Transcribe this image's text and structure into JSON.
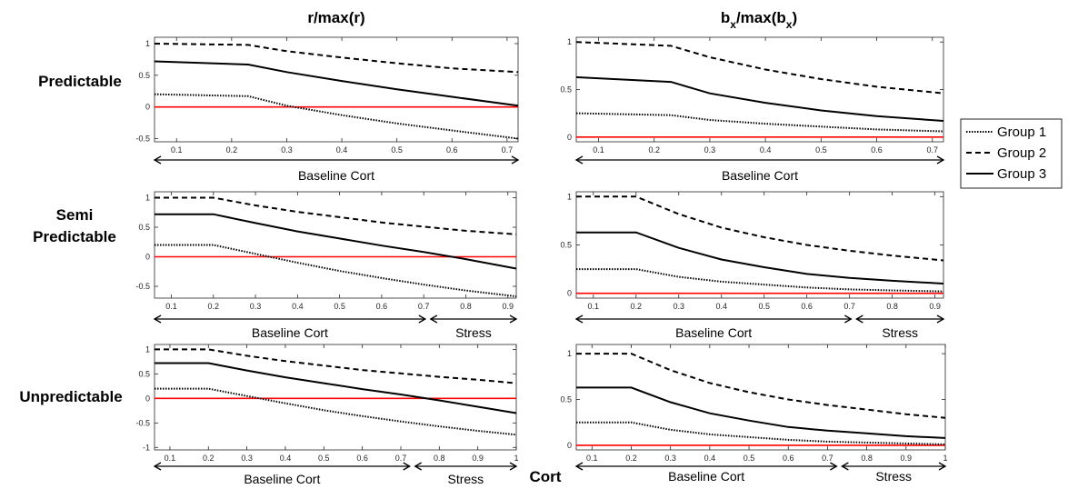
{
  "column_titles": [
    "r/max(r)",
    "bₓ/max(bₓ)"
  ],
  "column_title_parts": [
    {
      "text": "r/max(r)"
    },
    {
      "base1": "b",
      "sub1": "x",
      "mid": "/max(b",
      "sub2": "x",
      "end": ")"
    }
  ],
  "row_labels": [
    "Predictable",
    "Semi",
    "Predictable",
    "Unpredictable"
  ],
  "xlabel": "Cort",
  "segment_labels": {
    "baseline": "Baseline Cort",
    "stress": "Stress"
  },
  "legend": [
    {
      "name": "Group 1",
      "style": "dotted"
    },
    {
      "name": "Group 2",
      "style": "dashed"
    },
    {
      "name": "Group 3",
      "style": "solid"
    }
  ],
  "colors": {
    "series": "#000000",
    "zero_line": "#ff0000",
    "axes": "#262626"
  },
  "chart_data": [
    {
      "type": "line",
      "row": "Predictable",
      "column": "r/max(r)",
      "xlim": [
        0.06,
        0.72
      ],
      "ylim": [
        -0.55,
        1.1
      ],
      "xticks": [
        0.1,
        0.2,
        0.3,
        0.4,
        0.5,
        0.6,
        0.7
      ],
      "xtick_labels": [
        "0.1",
        "0.2",
        "0.3",
        "0.4",
        "0.5",
        "0.6",
        "0.7"
      ],
      "yticks": [
        -0.5,
        0,
        0.5,
        1
      ],
      "ytick_labels": [
        "-0.5",
        "0",
        "0.5",
        "1"
      ],
      "zero_line": true,
      "segments": [
        {
          "label": "Baseline Cort",
          "range": [
            0.06,
            0.72
          ]
        }
      ],
      "series": [
        {
          "name": "Group 1",
          "style": "dotted",
          "x": [
            0.06,
            0.23,
            0.3,
            0.4,
            0.5,
            0.6,
            0.72
          ],
          "y": [
            0.2,
            0.17,
            0.02,
            -0.13,
            -0.26,
            -0.37,
            -0.5
          ]
        },
        {
          "name": "Group 2",
          "style": "dashed",
          "x": [
            0.06,
            0.23,
            0.3,
            0.4,
            0.5,
            0.6,
            0.72
          ],
          "y": [
            1.0,
            0.98,
            0.88,
            0.78,
            0.69,
            0.61,
            0.55
          ]
        },
        {
          "name": "Group 3",
          "style": "solid",
          "x": [
            0.06,
            0.23,
            0.3,
            0.4,
            0.5,
            0.6,
            0.72
          ],
          "y": [
            0.72,
            0.67,
            0.55,
            0.41,
            0.28,
            0.16,
            0.02
          ]
        }
      ]
    },
    {
      "type": "line",
      "row": "Predictable",
      "column": "bx/max(bx)",
      "xlim": [
        0.06,
        0.72
      ],
      "ylim": [
        -0.05,
        1.05
      ],
      "xticks": [
        0.1,
        0.2,
        0.3,
        0.4,
        0.5,
        0.6,
        0.7
      ],
      "xtick_labels": [
        "0.1",
        "0.2",
        "0.3",
        "0.4",
        "0.5",
        "0.6",
        "0.7"
      ],
      "yticks": [
        0,
        0.5,
        1
      ],
      "ytick_labels": [
        "0",
        "0.5",
        "1"
      ],
      "zero_line": true,
      "segments": [
        {
          "label": "Baseline Cort",
          "range": [
            0.06,
            0.72
          ]
        }
      ],
      "series": [
        {
          "name": "Group 1",
          "style": "dotted",
          "x": [
            0.06,
            0.23,
            0.3,
            0.4,
            0.5,
            0.6,
            0.72
          ],
          "y": [
            0.25,
            0.23,
            0.18,
            0.14,
            0.11,
            0.08,
            0.06
          ]
        },
        {
          "name": "Group 2",
          "style": "dashed",
          "x": [
            0.06,
            0.23,
            0.3,
            0.4,
            0.5,
            0.6,
            0.72
          ],
          "y": [
            1.0,
            0.96,
            0.84,
            0.71,
            0.61,
            0.53,
            0.46
          ]
        },
        {
          "name": "Group 3",
          "style": "solid",
          "x": [
            0.06,
            0.23,
            0.3,
            0.4,
            0.5,
            0.6,
            0.72
          ],
          "y": [
            0.63,
            0.58,
            0.46,
            0.36,
            0.28,
            0.22,
            0.17
          ]
        }
      ]
    },
    {
      "type": "line",
      "row": "Semi Predictable",
      "column": "r/max(r)",
      "xlim": [
        0.06,
        0.92
      ],
      "ylim": [
        -0.7,
        1.1
      ],
      "xticks": [
        0.1,
        0.2,
        0.3,
        0.4,
        0.5,
        0.6,
        0.7,
        0.8,
        0.9
      ],
      "xtick_labels": [
        "0.1",
        "0.2",
        "0.3",
        "0.4",
        "0.5",
        "0.6",
        "0.7",
        "0.8",
        "0.9"
      ],
      "yticks": [
        -0.5,
        0,
        0.5,
        1
      ],
      "ytick_labels": [
        "-0.5",
        "0",
        "0.5",
        "1"
      ],
      "zero_line": true,
      "segments": [
        {
          "label": "Baseline Cort",
          "range": [
            0.06,
            0.71
          ]
        },
        {
          "label": "Stress",
          "range": [
            0.71,
            0.92
          ]
        }
      ],
      "series": [
        {
          "name": "Group 1",
          "style": "dotted",
          "x": [
            0.06,
            0.2,
            0.3,
            0.4,
            0.5,
            0.6,
            0.7,
            0.8,
            0.92
          ],
          "y": [
            0.2,
            0.2,
            0.05,
            -0.1,
            -0.24,
            -0.36,
            -0.47,
            -0.57,
            -0.67
          ]
        },
        {
          "name": "Group 2",
          "style": "dashed",
          "x": [
            0.06,
            0.2,
            0.3,
            0.4,
            0.5,
            0.6,
            0.7,
            0.8,
            0.92
          ],
          "y": [
            1.0,
            1.0,
            0.87,
            0.76,
            0.67,
            0.58,
            0.51,
            0.44,
            0.38
          ]
        },
        {
          "name": "Group 3",
          "style": "solid",
          "x": [
            0.06,
            0.2,
            0.3,
            0.4,
            0.5,
            0.6,
            0.7,
            0.8,
            0.92
          ],
          "y": [
            0.72,
            0.72,
            0.57,
            0.43,
            0.31,
            0.19,
            0.08,
            -0.04,
            -0.2
          ]
        }
      ]
    },
    {
      "type": "line",
      "row": "Semi Predictable",
      "column": "bx/max(bx)",
      "xlim": [
        0.06,
        0.92
      ],
      "ylim": [
        -0.05,
        1.05
      ],
      "xticks": [
        0.1,
        0.2,
        0.3,
        0.4,
        0.5,
        0.6,
        0.7,
        0.8,
        0.9
      ],
      "xtick_labels": [
        "0.1",
        "0.2",
        "0.3",
        "0.4",
        "0.5",
        "0.6",
        "0.7",
        "0.8",
        "0.9"
      ],
      "yticks": [
        0,
        0.5,
        1
      ],
      "ytick_labels": [
        "0",
        "0.5",
        "1"
      ],
      "zero_line": true,
      "segments": [
        {
          "label": "Baseline Cort",
          "range": [
            0.06,
            0.71
          ]
        },
        {
          "label": "Stress",
          "range": [
            0.71,
            0.92
          ]
        }
      ],
      "series": [
        {
          "name": "Group 1",
          "style": "dotted",
          "x": [
            0.06,
            0.2,
            0.3,
            0.4,
            0.5,
            0.6,
            0.7,
            0.8,
            0.92
          ],
          "y": [
            0.25,
            0.25,
            0.17,
            0.12,
            0.09,
            0.06,
            0.04,
            0.03,
            0.02
          ]
        },
        {
          "name": "Group 2",
          "style": "dashed",
          "x": [
            0.06,
            0.2,
            0.3,
            0.4,
            0.5,
            0.6,
            0.7,
            0.8,
            0.92
          ],
          "y": [
            1.0,
            1.0,
            0.82,
            0.68,
            0.58,
            0.5,
            0.44,
            0.39,
            0.34
          ]
        },
        {
          "name": "Group 3",
          "style": "solid",
          "x": [
            0.06,
            0.2,
            0.3,
            0.4,
            0.5,
            0.6,
            0.7,
            0.8,
            0.92
          ],
          "y": [
            0.63,
            0.63,
            0.47,
            0.35,
            0.27,
            0.2,
            0.16,
            0.13,
            0.1
          ]
        }
      ]
    },
    {
      "type": "line",
      "row": "Unpredictable",
      "column": "r/max(r)",
      "xlim": [
        0.06,
        1.0
      ],
      "ylim": [
        -1.05,
        1.1
      ],
      "xticks": [
        0.1,
        0.2,
        0.3,
        0.4,
        0.5,
        0.6,
        0.7,
        0.8,
        0.9,
        1
      ],
      "xtick_labels": [
        "0.1",
        "0.2",
        "0.3",
        "0.4",
        "0.5",
        "0.6",
        "0.7",
        "0.8",
        "0.9",
        "1"
      ],
      "yticks": [
        -1,
        -0.5,
        0,
        0.5,
        1
      ],
      "ytick_labels": [
        "-1",
        "-0.5",
        "0",
        "0.5",
        "1"
      ],
      "zero_line": true,
      "segments": [
        {
          "label": "Baseline Cort",
          "range": [
            0.06,
            0.73
          ]
        },
        {
          "label": "Stress",
          "range": [
            0.73,
            1.0
          ]
        }
      ],
      "series": [
        {
          "name": "Group 1",
          "style": "dotted",
          "x": [
            0.06,
            0.2,
            0.3,
            0.4,
            0.5,
            0.6,
            0.7,
            0.8,
            0.9,
            1.0
          ],
          "y": [
            0.2,
            0.2,
            0.05,
            -0.1,
            -0.24,
            -0.36,
            -0.47,
            -0.57,
            -0.66,
            -0.74
          ]
        },
        {
          "name": "Group 2",
          "style": "dashed",
          "x": [
            0.06,
            0.2,
            0.3,
            0.4,
            0.5,
            0.6,
            0.7,
            0.8,
            0.9,
            1.0
          ],
          "y": [
            1.0,
            1.0,
            0.87,
            0.76,
            0.67,
            0.58,
            0.51,
            0.44,
            0.38,
            0.31
          ]
        },
        {
          "name": "Group 3",
          "style": "solid",
          "x": [
            0.06,
            0.2,
            0.3,
            0.4,
            0.5,
            0.6,
            0.7,
            0.8,
            0.9,
            1.0
          ],
          "y": [
            0.72,
            0.72,
            0.57,
            0.43,
            0.31,
            0.19,
            0.08,
            -0.04,
            -0.17,
            -0.3
          ]
        }
      ]
    },
    {
      "type": "line",
      "row": "Unpredictable",
      "column": "bx/max(bx)",
      "xlim": [
        0.06,
        1.0
      ],
      "ylim": [
        -0.05,
        1.1
      ],
      "xticks": [
        0.1,
        0.2,
        0.3,
        0.4,
        0.5,
        0.6,
        0.7,
        0.8,
        0.9,
        1
      ],
      "xtick_labels": [
        "0.1",
        "0.2",
        "0.3",
        "0.4",
        "0.5",
        "0.6",
        "0.7",
        "0.8",
        "0.9",
        "1"
      ],
      "yticks": [
        0,
        0.5,
        1
      ],
      "ytick_labels": [
        "0",
        "0.5",
        "1"
      ],
      "zero_line": true,
      "segments": [
        {
          "label": "Baseline Cort",
          "range": [
            0.06,
            0.73
          ]
        },
        {
          "label": "Stress",
          "range": [
            0.73,
            1.0
          ]
        }
      ],
      "series": [
        {
          "name": "Group 1",
          "style": "dotted",
          "x": [
            0.06,
            0.2,
            0.3,
            0.4,
            0.5,
            0.6,
            0.7,
            0.8,
            0.9,
            1.0
          ],
          "y": [
            0.25,
            0.25,
            0.17,
            0.12,
            0.09,
            0.06,
            0.04,
            0.03,
            0.02,
            0.01
          ]
        },
        {
          "name": "Group 2",
          "style": "dashed",
          "x": [
            0.06,
            0.2,
            0.3,
            0.4,
            0.5,
            0.6,
            0.7,
            0.8,
            0.9,
            1.0
          ],
          "y": [
            1.0,
            1.0,
            0.82,
            0.68,
            0.58,
            0.5,
            0.44,
            0.39,
            0.34,
            0.3
          ]
        },
        {
          "name": "Group 3",
          "style": "solid",
          "x": [
            0.06,
            0.2,
            0.3,
            0.4,
            0.5,
            0.6,
            0.7,
            0.8,
            0.9,
            1.0
          ],
          "y": [
            0.63,
            0.63,
            0.47,
            0.35,
            0.27,
            0.2,
            0.16,
            0.13,
            0.1,
            0.08
          ]
        }
      ]
    }
  ]
}
